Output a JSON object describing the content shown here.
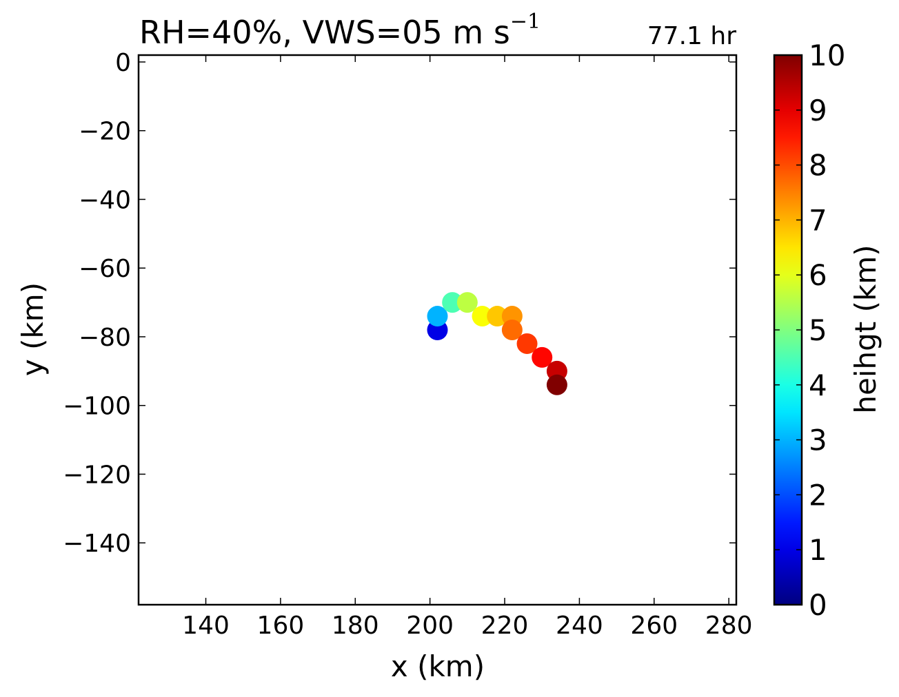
{
  "chart_data": {
    "type": "scatter",
    "title": {
      "main": "RH=40%, VWS=05 m s",
      "superscript": "−1"
    },
    "annotation": {
      "text": "77.1 hr",
      "color": "#0000ff",
      "placement": "top-right"
    },
    "xlabel": "x (km)",
    "ylabel": "y (km)",
    "xlim": [
      122,
      282
    ],
    "ylim": [
      -158,
      2
    ],
    "xticks": [
      140,
      160,
      180,
      200,
      220,
      240,
      260,
      280
    ],
    "xtick_labels": [
      "140",
      "160",
      "180",
      "200",
      "220",
      "240",
      "260",
      "280"
    ],
    "yticks": [
      0,
      -20,
      -40,
      -60,
      -80,
      -100,
      -120,
      -140
    ],
    "ytick_labels": [
      "0",
      "−20",
      "−40",
      "−60",
      "−80",
      "−100",
      "−120",
      "−140"
    ],
    "grid": false,
    "colormap": "jet",
    "colorbar": {
      "label": "heihgt (km)",
      "range": [
        0,
        10
      ],
      "ticks": [
        0,
        1,
        2,
        3,
        4,
        5,
        6,
        7,
        8,
        9,
        10
      ],
      "tick_labels": [
        "0",
        "1",
        "2",
        "3",
        "4",
        "5",
        "6",
        "7",
        "8",
        "9",
        "10"
      ]
    },
    "points": [
      {
        "x": 202,
        "y": -78,
        "height": 1.0
      },
      {
        "x": 202,
        "y": -74,
        "height": 3.0
      },
      {
        "x": 206,
        "y": -70,
        "height": 4.5
      },
      {
        "x": 210,
        "y": -70,
        "height": 5.6
      },
      {
        "x": 214,
        "y": -74,
        "height": 6.2
      },
      {
        "x": 218,
        "y": -74,
        "height": 6.8
      },
      {
        "x": 222,
        "y": -74,
        "height": 7.3
      },
      {
        "x": 222,
        "y": -78,
        "height": 7.7
      },
      {
        "x": 226,
        "y": -82,
        "height": 8.2
      },
      {
        "x": 230,
        "y": -86,
        "height": 8.7
      },
      {
        "x": 234,
        "y": -90,
        "height": 9.3
      },
      {
        "x": 234,
        "y": -94,
        "height": 10.0
      }
    ]
  }
}
